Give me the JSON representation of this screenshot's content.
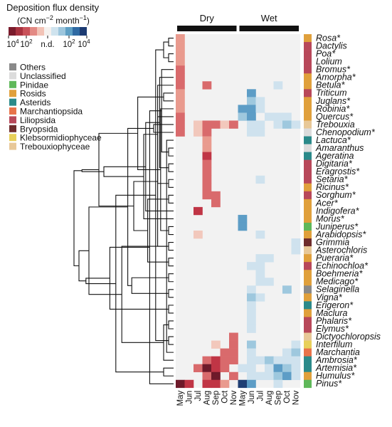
{
  "chart_data": {
    "type": "heatmap",
    "colorbar": {
      "title": "Deposition flux density",
      "unit_prefix": "(CN cm",
      "unit_exp1": "−2",
      "unit_mid": " month",
      "unit_exp2": "−1",
      "unit_suffix": ")",
      "ticks": [
        "10",
        "10",
        "n.d.",
        "10",
        "10"
      ],
      "tick_exponents": [
        "4",
        "2",
        "",
        "2",
        "4"
      ],
      "colors": [
        "#7a1b2c",
        "#a8323f",
        "#c9525a",
        "#e38a84",
        "#f2c3b6",
        "#f5f1ee",
        "#cfe3ee",
        "#9dc6dd",
        "#5e9fc4",
        "#2f6aa3",
        "#1c3b72"
      ]
    },
    "seasons": [
      {
        "name": "Dry",
        "from": 0,
        "to": 6
      },
      {
        "name": "Wet",
        "from": 7,
        "to": 13
      }
    ],
    "months": [
      "May",
      "Jun",
      "Jul",
      "Aug",
      "Sep",
      "Oct",
      "Nov",
      "May",
      "Jun",
      "Jul",
      "Aug",
      "Sep",
      "Oct",
      "Nov"
    ],
    "legend": [
      {
        "label": "Others",
        "color": "#8a8a8a"
      },
      {
        "label": "Unclassified",
        "color": "#dcdcdc"
      },
      {
        "label": "Pinidae",
        "color": "#5fb85a"
      },
      {
        "label": "Rosids",
        "color": "#e0a03c"
      },
      {
        "label": "Asterids",
        "color": "#2b8a8a"
      },
      {
        "label": "Marchantiopsida",
        "color": "#e8734a"
      },
      {
        "label": "Liliopsida",
        "color": "#b8485a"
      },
      {
        "label": "Bryopsida",
        "color": "#6e2c2c"
      },
      {
        "label": "Klebsormidiophyceae",
        "color": "#e8d05a"
      },
      {
        "label": "Trebouxiophyceae",
        "color": "#e8c898"
      }
    ],
    "rows": [
      {
        "taxon": "Rosa*",
        "group": "Rosids",
        "cells": {
          "0": 2
        }
      },
      {
        "taxon": "Dactylis",
        "group": "Liliopsida",
        "cells": {
          "0": 2
        }
      },
      {
        "taxon": "Poa*",
        "group": "Liliopsida",
        "cells": {
          "0": 2
        }
      },
      {
        "taxon": "Lolium",
        "group": "Liliopsida",
        "cells": {
          "0": 2
        }
      },
      {
        "taxon": "Bromus*",
        "group": "Liliopsida",
        "cells": {
          "0": 3
        }
      },
      {
        "taxon": "Amorpha*",
        "group": "Rosids",
        "cells": {
          "0": 3
        }
      },
      {
        "taxon": "Betula*",
        "group": "Rosids",
        "cells": {
          "0": 3,
          "3": 3,
          "11": -1
        }
      },
      {
        "taxon": "Triticum",
        "group": "Liliopsida",
        "cells": {
          "0": 2,
          "8": -3
        }
      },
      {
        "taxon": "Juglans*",
        "group": "Rosids",
        "cells": {
          "0": 2,
          "8": -2,
          "9": -1
        }
      },
      {
        "taxon": "Robinia*",
        "group": "Rosids",
        "cells": {
          "0": 2,
          "7": -3,
          "8": -3,
          "9": -1
        }
      },
      {
        "taxon": "Quercus*",
        "group": "Rosids",
        "cells": {
          "0": 3,
          "7": -2,
          "8": -3,
          "10": -1,
          "11": -1,
          "12": -1
        }
      },
      {
        "taxon": "Trebouxia",
        "group": "Trebouxiophyceae",
        "cells": {
          "0": 3,
          "2": 1,
          "3": 3,
          "4": 3,
          "5": 1,
          "6": 3,
          "8": -1,
          "9": -1,
          "11": -1,
          "12": -2,
          "13": -1
        }
      },
      {
        "taxon": "Chenopodium*",
        "group": "Unclassified",
        "cells": {
          "0": 3,
          "2": 1,
          "3": 3,
          "8": -1,
          "9": -1
        }
      },
      {
        "taxon": "Lactuca*",
        "group": "Asterids",
        "cells": {
          "3": 2
        }
      },
      {
        "taxon": "Amaranthus",
        "group": "Unclassified",
        "cells": {
          "3": 2
        }
      },
      {
        "taxon": "Ageratina",
        "group": "Asterids",
        "cells": {
          "3": 4
        }
      },
      {
        "taxon": "Digitaria*",
        "group": "Liliopsida",
        "cells": {
          "3": 3
        }
      },
      {
        "taxon": "Eragrostis*",
        "group": "Liliopsida",
        "cells": {
          "3": 3
        }
      },
      {
        "taxon": "Setaria*",
        "group": "Liliopsida",
        "cells": {
          "3": 3,
          "9": -1
        }
      },
      {
        "taxon": "Ricinus*",
        "group": "Rosids",
        "cells": {
          "3": 3
        }
      },
      {
        "taxon": "Sorghum*",
        "group": "Liliopsida",
        "cells": {
          "3": 3,
          "4": 3
        }
      },
      {
        "taxon": "Acer*",
        "group": "Rosids",
        "cells": {
          "4": 3
        }
      },
      {
        "taxon": "Indigofera*",
        "group": "Rosids",
        "cells": {
          "2": 4
        }
      },
      {
        "taxon": "Morus*",
        "group": "Rosids",
        "cells": {
          "7": -3
        }
      },
      {
        "taxon": "Juniperus*",
        "group": "Pinidae",
        "cells": {
          "7": -3
        }
      },
      {
        "taxon": "Arabidopsis*",
        "group": "Rosids",
        "cells": {
          "2": 1,
          "9": -1
        }
      },
      {
        "taxon": "Grimmia",
        "group": "Bryopsida",
        "cells": {
          "13": -1
        }
      },
      {
        "taxon": "Asterochloris",
        "group": "Trebouxiophyceae",
        "cells": {
          "13": -1
        }
      },
      {
        "taxon": "Pueraria*",
        "group": "Rosids",
        "cells": {
          "9": -1,
          "10": -1
        }
      },
      {
        "taxon": "Echinochloa*",
        "group": "Liliopsida",
        "cells": {
          "8": -1,
          "9": -1
        }
      },
      {
        "taxon": "Boehmeria*",
        "group": "Rosids",
        "cells": {
          "9": -1
        }
      },
      {
        "taxon": "Medicago*",
        "group": "Rosids",
        "cells": {
          "9": -1,
          "10": -1
        }
      },
      {
        "taxon": "Selaginella",
        "group": "Others",
        "cells": {
          "8": -1,
          "12": -2
        }
      },
      {
        "taxon": "Vigna*",
        "group": "Rosids",
        "cells": {
          "8": -2,
          "9": -1
        }
      },
      {
        "taxon": "Erigeron*",
        "group": "Asterids",
        "cells": {
          "8": -1
        }
      },
      {
        "taxon": "Maclura",
        "group": "Rosids",
        "cells": {
          "8": -1
        }
      },
      {
        "taxon": "Phalaris*",
        "group": "Liliopsida",
        "cells": {
          "8": -1
        }
      },
      {
        "taxon": "Elymus*",
        "group": "Liliopsida",
        "cells": {
          "8": -1
        }
      },
      {
        "taxon": "Dictyochloropsis",
        "group": "Trebouxiophyceae",
        "cells": {
          "6": 3
        }
      },
      {
        "taxon": "Interfilum",
        "group": "Klebsormidiophyceae",
        "cells": {
          "4": 1,
          "6": 3,
          "8": -2,
          "13": -1
        }
      },
      {
        "taxon": "Marchantia",
        "group": "Marchantiopsida",
        "cells": {
          "5": 3,
          "6": 3,
          "8": -1,
          "12": -1,
          "13": -2
        }
      },
      {
        "taxon": "Ambrosia*",
        "group": "Asterids",
        "cells": {
          "3": 3,
          "4": 4,
          "5": 3,
          "6": 3,
          "8": -1,
          "9": -1,
          "10": -2,
          "11": -1,
          "12": -1,
          "13": -1
        }
      },
      {
        "taxon": "Artemisia*",
        "group": "Asterids",
        "cells": {
          "2": 3,
          "3": 5,
          "4": 4,
          "5": 3,
          "7": -1,
          "8": -1,
          "10": -1,
          "11": -3,
          "12": -2,
          "13": -1
        }
      },
      {
        "taxon": "Humulus*",
        "group": "Rosids",
        "cells": {
          "3": 3,
          "4": 5,
          "6": 3,
          "8": -1,
          "9": -1,
          "10": -1,
          "11": -2,
          "12": -3,
          "13": -1
        }
      },
      {
        "taxon": "Pinus*",
        "group": "Pinidae",
        "cells": {
          "0": 5,
          "1": 4,
          "3": 4,
          "4": 4,
          "5": 2,
          "7": -5,
          "8": -3,
          "11": -1
        }
      }
    ],
    "dendrogram": [
      [
        0,
        1,
        0.05
      ],
      [
        2,
        3,
        0.05
      ],
      [
        14,
        15,
        0.05
      ],
      [
        16,
        17,
        0.05
      ],
      [
        18,
        19,
        0.05
      ],
      [
        20,
        21,
        0.05
      ],
      [
        24,
        25,
        0.05
      ],
      [
        26,
        27,
        0.05
      ],
      [
        28,
        29,
        0.05
      ],
      [
        30,
        31,
        0.05
      ],
      [
        32,
        33,
        0.05
      ],
      [
        34,
        35,
        0.05
      ],
      [
        36,
        37,
        0.05
      ],
      [
        38,
        39,
        0.05
      ],
      [
        45,
        46,
        0.1
      ],
      [
        47,
        4,
        0.12
      ],
      [
        48,
        5,
        0.14
      ],
      [
        49,
        6,
        0.16
      ],
      [
        7,
        8,
        0.1
      ],
      [
        51,
        9,
        0.13
      ],
      [
        52,
        10,
        0.16
      ],
      [
        50,
        53,
        0.26
      ],
      [
        11,
        12,
        0.2
      ],
      [
        54,
        55,
        0.42
      ],
      [
        13,
        40,
        0.07
      ],
      [
        57,
        41,
        0.1
      ],
      [
        42,
        43,
        0.1
      ],
      [
        58,
        59,
        0.18
      ],
      [
        60,
        44,
        0.24
      ],
      [
        61,
        22,
        0.28
      ],
      [
        62,
        23,
        0.3
      ],
      [
        63,
        64,
        0.36
      ],
      [
        65,
        66,
        0.4
      ],
      [
        67,
        68,
        0.46
      ],
      [
        69,
        70,
        0.52
      ],
      [
        71,
        72,
        0.58
      ],
      [
        56,
        73,
        0.64
      ],
      [
        74,
        75,
        0.7
      ],
      [
        76,
        77,
        0.75
      ],
      [
        78,
        79,
        0.85
      ],
      [
        80,
        81,
        0.88
      ],
      [
        82,
        83,
        0.92
      ],
      [
        84,
        85,
        0.95
      ],
      [
        86,
        87,
        1.0
      ]
    ]
  }
}
